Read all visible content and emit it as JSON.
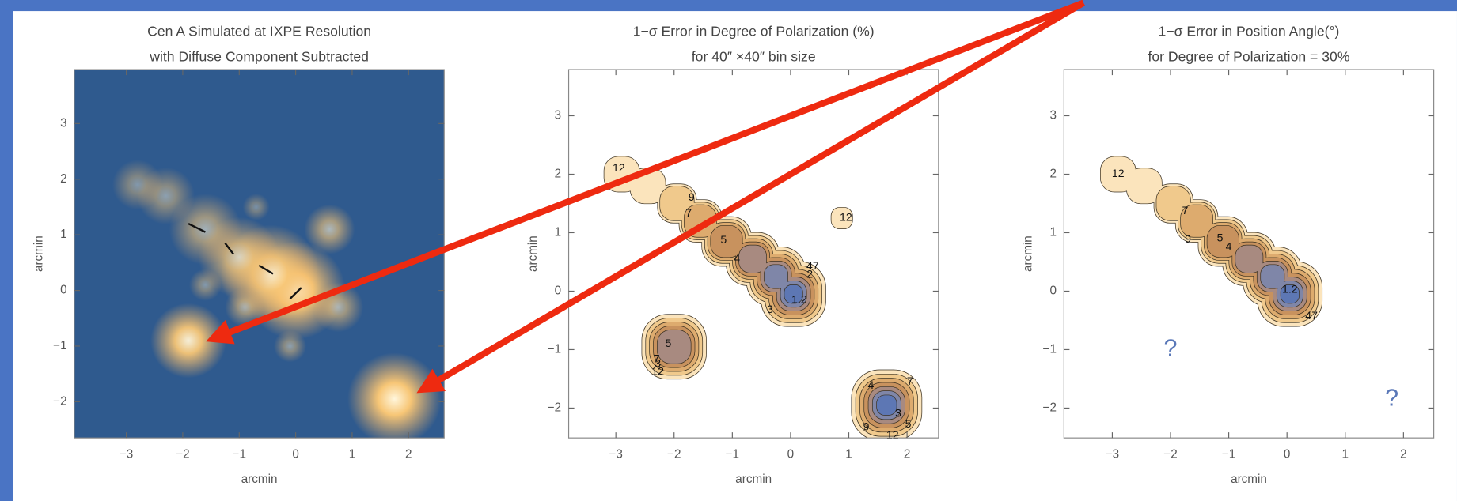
{
  "chart_data": [
    {
      "type": "heatmap",
      "title": "Cen A Simulated at IXPE Resolution",
      "subtitle": "with Diffuse Component Subtracted",
      "xlabel": "arcmin",
      "ylabel": "arcmin",
      "xlim": [
        -3.92,
        2.63
      ],
      "ylim": [
        -2.65,
        3.97
      ],
      "xticks": [
        {
          "value": -3,
          "label": "−3"
        },
        {
          "value": -2,
          "label": "−2"
        },
        {
          "value": -1,
          "label": "−1"
        },
        0,
        1,
        2
      ],
      "yticks": [
        {
          "value": -2,
          "label": "−2"
        },
        {
          "value": -1,
          "label": "−1"
        },
        0,
        1,
        2,
        3
      ]
    },
    {
      "type": "contour",
      "title": "1−σ Error in Degree of Polarization (%)",
      "subtitle": "for 40″ ×40″ bin size",
      "xlabel": "arcmin",
      "ylabel": "arcmin",
      "xlim": [
        -3.81,
        2.54
      ],
      "ylim": [
        -2.51,
        3.79
      ],
      "xticks": [
        {
          "value": -3,
          "label": "−3"
        },
        {
          "value": -2,
          "label": "−2"
        },
        {
          "value": -1,
          "label": "−1"
        },
        0,
        1,
        2
      ],
      "yticks": [
        {
          "value": -2,
          "label": "−2"
        },
        {
          "value": -1,
          "label": "−1"
        },
        0,
        1,
        2,
        3
      ],
      "contour_labels": [
        "12",
        "9",
        "7",
        "5",
        "4",
        "2",
        "47",
        "1.2",
        "3",
        "12",
        "5",
        "7",
        "3",
        "12",
        "4",
        "7",
        "3",
        "5",
        "9",
        "12"
      ]
    },
    {
      "type": "contour",
      "title": "1−σ Error in Position Angle(°)",
      "subtitle": "for Degree of Polarization = 30%",
      "xlabel": "arcmin",
      "ylabel": "arcmin",
      "xlim": [
        -3.83,
        2.52
      ],
      "ylim": [
        -2.51,
        3.79
      ],
      "xticks": [
        {
          "value": -3,
          "label": "−3"
        },
        {
          "value": -2,
          "label": "−2"
        },
        {
          "value": -1,
          "label": "−1"
        },
        0,
        1,
        2
      ],
      "yticks": [
        {
          "value": -2,
          "label": "−2"
        },
        {
          "value": -1,
          "label": "−1"
        },
        0,
        1,
        2,
        3
      ],
      "contour_labels": [
        "12",
        "7",
        "9",
        "5",
        "4",
        "1.2",
        "47",
        "?",
        "?"
      ]
    }
  ]
}
